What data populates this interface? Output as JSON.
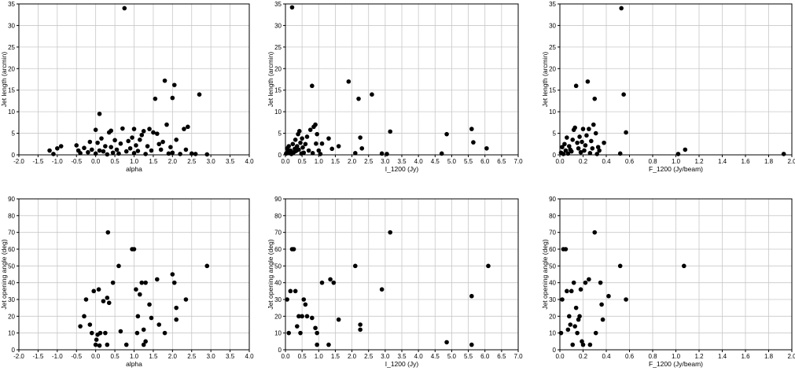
{
  "chart_data": [
    {
      "type": "scatter",
      "xlabel": "alpha",
      "ylabel": "Jet length (arcmin)",
      "xlim": [
        -2.0,
        4.0
      ],
      "xticks": [
        -2.0,
        -1.5,
        -1.0,
        -0.5,
        0.0,
        0.5,
        1.0,
        1.5,
        2.0,
        2.5,
        3.0,
        3.5,
        4.0
      ],
      "ylim": [
        0,
        35
      ],
      "yticks": [
        0,
        5,
        10,
        15,
        20,
        25,
        30,
        35
      ],
      "grid": true,
      "points": [
        [
          -1.2,
          1.0
        ],
        [
          -1.1,
          0.2
        ],
        [
          -1.0,
          1.5
        ],
        [
          -0.9,
          2.0
        ],
        [
          -0.5,
          2.2
        ],
        [
          -0.45,
          1.0
        ],
        [
          -0.4,
          0.4
        ],
        [
          -0.3,
          1.6
        ],
        [
          -0.2,
          0.6
        ],
        [
          -0.15,
          3.0
        ],
        [
          -0.1,
          1.2
        ],
        [
          0.0,
          5.8
        ],
        [
          0.0,
          0.3
        ],
        [
          0.05,
          2.8
        ],
        [
          0.1,
          9.5
        ],
        [
          0.1,
          1.0
        ],
        [
          0.15,
          3.8
        ],
        [
          0.2,
          0.8
        ],
        [
          0.25,
          2.0
        ],
        [
          0.3,
          0.1
        ],
        [
          0.35,
          5.2
        ],
        [
          0.4,
          5.6
        ],
        [
          0.4,
          1.8
        ],
        [
          0.45,
          0.5
        ],
        [
          0.5,
          3.4
        ],
        [
          0.55,
          1.2
        ],
        [
          0.6,
          0.3
        ],
        [
          0.65,
          2.6
        ],
        [
          0.7,
          6.1
        ],
        [
          0.75,
          34.0
        ],
        [
          0.8,
          0.8
        ],
        [
          0.85,
          3.2
        ],
        [
          0.9,
          1.5
        ],
        [
          0.95,
          4.0
        ],
        [
          1.0,
          6.0
        ],
        [
          1.0,
          0.4
        ],
        [
          1.05,
          2.2
        ],
        [
          1.1,
          0.9
        ],
        [
          1.15,
          3.5
        ],
        [
          1.2,
          4.6
        ],
        [
          1.25,
          5.5
        ],
        [
          1.3,
          0.2
        ],
        [
          1.35,
          2.0
        ],
        [
          1.4,
          6.0
        ],
        [
          1.45,
          1.0
        ],
        [
          1.5,
          5.2
        ],
        [
          1.55,
          13.0
        ],
        [
          1.6,
          4.9
        ],
        [
          1.65,
          2.5
        ],
        [
          1.7,
          1.2
        ],
        [
          1.75,
          3.0
        ],
        [
          1.8,
          17.2
        ],
        [
          1.85,
          7.0
        ],
        [
          1.9,
          0.3
        ],
        [
          1.95,
          1.8
        ],
        [
          2.0,
          13.2
        ],
        [
          2.0,
          0.5
        ],
        [
          2.05,
          16.2
        ],
        [
          2.1,
          3.5
        ],
        [
          2.2,
          0.2
        ],
        [
          2.3,
          6.0
        ],
        [
          2.35,
          1.2
        ],
        [
          2.4,
          6.5
        ],
        [
          2.5,
          0.3
        ],
        [
          2.7,
          14.0
        ],
        [
          2.9,
          0.1
        ],
        [
          2.6,
          0.2
        ]
      ]
    },
    {
      "type": "scatter",
      "xlabel": "I_1200 (Jy)",
      "ylabel": "Jet length (arcmin)",
      "xlim": [
        0.0,
        7.0
      ],
      "xticks": [
        0.0,
        0.5,
        1.0,
        1.5,
        2.0,
        2.5,
        3.0,
        3.5,
        4.0,
        4.5,
        5.0,
        5.5,
        6.0,
        6.5,
        7.0
      ],
      "ylim": [
        0,
        35
      ],
      "yticks": [
        0,
        5,
        10,
        15,
        20,
        25,
        30,
        35
      ],
      "grid": true,
      "points": [
        [
          0.02,
          0.3
        ],
        [
          0.05,
          1.5
        ],
        [
          0.08,
          0.8
        ],
        [
          0.1,
          2.0
        ],
        [
          0.12,
          0.5
        ],
        [
          0.15,
          1.0
        ],
        [
          0.18,
          0.2
        ],
        [
          0.2,
          34.2
        ],
        [
          0.22,
          2.5
        ],
        [
          0.25,
          0.6
        ],
        [
          0.28,
          1.4
        ],
        [
          0.3,
          3.5
        ],
        [
          0.32,
          0.9
        ],
        [
          0.35,
          2.0
        ],
        [
          0.38,
          4.8
        ],
        [
          0.4,
          1.2
        ],
        [
          0.42,
          5.5
        ],
        [
          0.45,
          2.8
        ],
        [
          0.48,
          0.3
        ],
        [
          0.5,
          3.8
        ],
        [
          0.52,
          1.7
        ],
        [
          0.55,
          0.5
        ],
        [
          0.6,
          2.5
        ],
        [
          0.65,
          4.2
        ],
        [
          0.7,
          1.0
        ],
        [
          0.75,
          5.8
        ],
        [
          0.8,
          16.0
        ],
        [
          0.82,
          0.4
        ],
        [
          0.85,
          6.5
        ],
        [
          0.9,
          7.0
        ],
        [
          0.92,
          2.6
        ],
        [
          0.95,
          4.8
        ],
        [
          1.0,
          1.0
        ],
        [
          1.05,
          0.2
        ],
        [
          1.1,
          2.6
        ],
        [
          1.3,
          3.8
        ],
        [
          1.4,
          1.4
        ],
        [
          1.6,
          2.0
        ],
        [
          1.9,
          17.0
        ],
        [
          2.1,
          0.4
        ],
        [
          2.2,
          13.0
        ],
        [
          2.25,
          4.0
        ],
        [
          2.3,
          1.5
        ],
        [
          2.6,
          14.0
        ],
        [
          2.9,
          0.3
        ],
        [
          3.05,
          0.2
        ],
        [
          3.15,
          5.4
        ],
        [
          4.7,
          0.3
        ],
        [
          4.85,
          4.8
        ],
        [
          5.6,
          6.0
        ],
        [
          5.65,
          2.9
        ],
        [
          6.05,
          1.5
        ]
      ]
    },
    {
      "type": "scatter",
      "xlabel": "F_1200 (Jy/beam)",
      "ylabel": "Jet length (arcmin)",
      "xlim": [
        0.0,
        2.0
      ],
      "xticks": [
        0.0,
        0.2,
        0.4,
        0.6,
        0.8,
        1.0,
        1.2,
        1.4,
        1.6,
        1.8,
        2.0
      ],
      "ylim": [
        0,
        35
      ],
      "yticks": [
        0,
        5,
        10,
        15,
        20,
        25,
        30,
        35
      ],
      "grid": true,
      "points": [
        [
          0.01,
          0.5
        ],
        [
          0.02,
          1.8
        ],
        [
          0.03,
          0.2
        ],
        [
          0.04,
          2.5
        ],
        [
          0.05,
          1.0
        ],
        [
          0.06,
          4.0
        ],
        [
          0.07,
          0.3
        ],
        [
          0.08,
          2.0
        ],
        [
          0.09,
          1.2
        ],
        [
          0.1,
          0.8
        ],
        [
          0.11,
          3.5
        ],
        [
          0.12,
          5.8
        ],
        [
          0.13,
          6.3
        ],
        [
          0.14,
          16.0
        ],
        [
          0.15,
          2.8
        ],
        [
          0.16,
          1.5
        ],
        [
          0.17,
          4.2
        ],
        [
          0.18,
          0.6
        ],
        [
          0.19,
          3.0
        ],
        [
          0.2,
          6.0
        ],
        [
          0.21,
          1.0
        ],
        [
          0.22,
          2.2
        ],
        [
          0.23,
          4.5
        ],
        [
          0.24,
          17.0
        ],
        [
          0.25,
          6.0
        ],
        [
          0.26,
          0.4
        ],
        [
          0.27,
          3.2
        ],
        [
          0.28,
          1.5
        ],
        [
          0.29,
          7.0
        ],
        [
          0.3,
          13.0
        ],
        [
          0.31,
          5.0
        ],
        [
          0.32,
          0.2
        ],
        [
          0.33,
          1.8
        ],
        [
          0.34,
          1.0
        ],
        [
          0.38,
          2.8
        ],
        [
          0.52,
          0.3
        ],
        [
          0.53,
          34.0
        ],
        [
          0.55,
          14.0
        ],
        [
          0.57,
          5.2
        ],
        [
          1.02,
          0.2
        ],
        [
          1.08,
          1.2
        ],
        [
          1.93,
          0.2
        ]
      ]
    },
    {
      "type": "scatter",
      "xlabel": "alpha",
      "ylabel": "Jet opening angle (deg)",
      "xlim": [
        -2.0,
        4.0
      ],
      "xticks": [
        -2.0,
        -1.5,
        -1.0,
        -0.5,
        0.0,
        0.5,
        1.0,
        1.5,
        2.0,
        2.5,
        3.0,
        3.5,
        4.0
      ],
      "ylim": [
        0,
        90
      ],
      "yticks": [
        0,
        10,
        20,
        30,
        40,
        50,
        60,
        70,
        80,
        90
      ],
      "grid": true,
      "points": [
        [
          -0.4,
          14.0
        ],
        [
          -0.3,
          20.0
        ],
        [
          -0.25,
          30.0
        ],
        [
          -0.15,
          15.0
        ],
        [
          -0.1,
          10.0
        ],
        [
          -0.05,
          35.0
        ],
        [
          0.0,
          3.0
        ],
        [
          0.02,
          6.0
        ],
        [
          0.05,
          9.0
        ],
        [
          0.08,
          36.0
        ],
        [
          0.1,
          2.5
        ],
        [
          0.12,
          10.0
        ],
        [
          0.2,
          29.0
        ],
        [
          0.25,
          10.0
        ],
        [
          0.3,
          31.0
        ],
        [
          0.3,
          3.0
        ],
        [
          0.32,
          70.0
        ],
        [
          0.35,
          28.0
        ],
        [
          0.45,
          40.0
        ],
        [
          0.6,
          50.0
        ],
        [
          0.65,
          11.0
        ],
        [
          0.8,
          3.0
        ],
        [
          0.95,
          60.0
        ],
        [
          1.0,
          60.0
        ],
        [
          1.05,
          36.0
        ],
        [
          1.08,
          10.0
        ],
        [
          1.1,
          20.0
        ],
        [
          1.15,
          33.0
        ],
        [
          1.2,
          40.0
        ],
        [
          1.25,
          12.0
        ],
        [
          1.25,
          3.0
        ],
        [
          1.3,
          40.0
        ],
        [
          1.3,
          5.0
        ],
        [
          1.4,
          27.0
        ],
        [
          1.45,
          19.0
        ],
        [
          1.6,
          42.0
        ],
        [
          1.65,
          15.0
        ],
        [
          1.8,
          10.0
        ],
        [
          2.0,
          45.0
        ],
        [
          2.05,
          40.0
        ],
        [
          2.1,
          25.0
        ],
        [
          2.1,
          18.0
        ],
        [
          2.35,
          30.0
        ],
        [
          2.9,
          50.0
        ]
      ]
    },
    {
      "type": "scatter",
      "xlabel": "I_1200 (Jy)",
      "ylabel": "Jet opening angle (deg)",
      "xlim": [
        0.0,
        7.0
      ],
      "xticks": [
        0.0,
        0.5,
        1.0,
        1.5,
        2.0,
        2.5,
        3.0,
        3.5,
        4.0,
        4.5,
        5.0,
        5.5,
        6.0,
        6.5,
        7.0
      ],
      "ylim": [
        0,
        90
      ],
      "yticks": [
        0,
        10,
        20,
        30,
        40,
        50,
        60,
        70,
        80,
        90
      ],
      "grid": true,
      "points": [
        [
          0.05,
          30.0
        ],
        [
          0.1,
          10.0
        ],
        [
          0.15,
          35.0
        ],
        [
          0.2,
          60.0
        ],
        [
          0.25,
          60.0
        ],
        [
          0.3,
          35.0
        ],
        [
          0.35,
          14.0
        ],
        [
          0.4,
          20.0
        ],
        [
          0.45,
          10.0
        ],
        [
          0.5,
          20.0
        ],
        [
          0.55,
          30.0
        ],
        [
          0.6,
          27.0
        ],
        [
          0.65,
          20.0
        ],
        [
          0.8,
          19.0
        ],
        [
          0.9,
          13.0
        ],
        [
          0.95,
          10.0
        ],
        [
          0.95,
          3.0
        ],
        [
          1.1,
          40.0
        ],
        [
          1.3,
          3.0
        ],
        [
          1.35,
          42.0
        ],
        [
          1.45,
          40.0
        ],
        [
          1.6,
          18.0
        ],
        [
          2.1,
          50.0
        ],
        [
          2.25,
          15.0
        ],
        [
          2.25,
          12.0
        ],
        [
          2.9,
          36.0
        ],
        [
          3.15,
          70.0
        ],
        [
          4.85,
          4.5
        ],
        [
          5.6,
          32.0
        ],
        [
          5.6,
          3.0
        ],
        [
          6.1,
          50.0
        ]
      ]
    },
    {
      "type": "scatter",
      "xlabel": "F_1200 (Jy/beam)",
      "ylabel": "Jet opening angle (deg)",
      "xlim": [
        0.0,
        2.0
      ],
      "xticks": [
        0.0,
        0.2,
        0.4,
        0.6,
        0.8,
        1.0,
        1.2,
        1.4,
        1.6,
        1.8,
        2.0
      ],
      "ylim": [
        0,
        90
      ],
      "yticks": [
        0,
        10,
        20,
        30,
        40,
        50,
        60,
        70,
        80,
        90
      ],
      "grid": true,
      "points": [
        [
          0.01,
          10.0
        ],
        [
          0.02,
          30.0
        ],
        [
          0.03,
          60.0
        ],
        [
          0.05,
          60.0
        ],
        [
          0.06,
          35.0
        ],
        [
          0.07,
          12.0
        ],
        [
          0.08,
          20.0
        ],
        [
          0.09,
          15.0
        ],
        [
          0.1,
          35.0
        ],
        [
          0.11,
          3.0
        ],
        [
          0.12,
          40.0
        ],
        [
          0.13,
          14.0
        ],
        [
          0.14,
          25.0
        ],
        [
          0.15,
          10.0
        ],
        [
          0.16,
          18.0
        ],
        [
          0.17,
          20.0
        ],
        [
          0.18,
          36.0
        ],
        [
          0.19,
          5.0
        ],
        [
          0.2,
          3.0
        ],
        [
          0.22,
          40.0
        ],
        [
          0.25,
          42.0
        ],
        [
          0.26,
          3.0
        ],
        [
          0.3,
          70.0
        ],
        [
          0.31,
          10.0
        ],
        [
          0.35,
          40.0
        ],
        [
          0.36,
          27.0
        ],
        [
          0.37,
          18.0
        ],
        [
          0.42,
          32.0
        ],
        [
          0.52,
          50.0
        ],
        [
          0.57,
          30.0
        ],
        [
          1.07,
          50.0
        ]
      ]
    }
  ]
}
